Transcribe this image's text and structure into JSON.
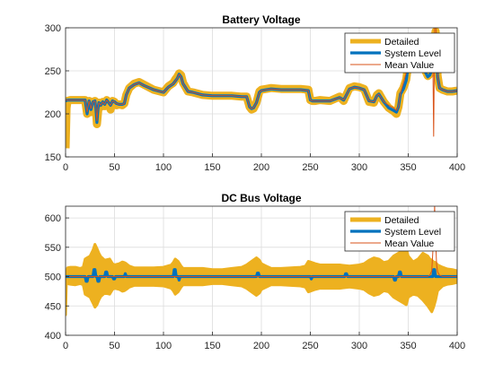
{
  "chart_data": [
    {
      "type": "line",
      "title": "Battery Voltage",
      "xlim": [
        0,
        400
      ],
      "ylim": [
        150,
        300
      ],
      "x_ticks": [
        "0",
        "50",
        "100",
        "150",
        "200",
        "250",
        "300",
        "350",
        "400"
      ],
      "y_ticks": [
        "150",
        "200",
        "250",
        "300"
      ],
      "y_tick_values": [
        150,
        200,
        250,
        300
      ],
      "grid": true,
      "legend_placement": "top-right",
      "series": [
        {
          "name": "Detailed",
          "color": "#EDB120",
          "style": "thick band",
          "band_halfwidth": 6,
          "x": [
            0,
            1,
            2,
            5,
            10,
            15,
            20,
            22,
            24,
            26,
            28,
            30,
            31,
            32,
            33,
            34,
            36,
            38,
            40,
            42,
            44,
            46,
            48,
            50,
            52,
            55,
            58,
            60,
            62,
            65,
            70,
            75,
            80,
            90,
            100,
            105,
            110,
            112,
            114,
            116,
            118,
            120,
            125,
            130,
            140,
            150,
            160,
            170,
            180,
            185,
            188,
            190,
            192,
            195,
            198,
            200,
            205,
            210,
            220,
            230,
            240,
            248,
            250,
            252,
            255,
            260,
            270,
            280,
            284,
            286,
            290,
            295,
            300,
            305,
            310,
            315,
            318,
            320,
            325,
            330,
            335,
            338,
            340,
            342,
            345,
            348,
            350,
            355,
            360,
            365,
            370,
            372,
            374,
            375,
            376,
            377,
            378,
            380,
            382,
            385,
            390,
            395,
            400
          ],
          "y": [
            160,
            207,
            215,
            216,
            216,
            216,
            216,
            200,
            215,
            202,
            214,
            215,
            205,
            188,
            200,
            213,
            208,
            214,
            209,
            216,
            212,
            205,
            215,
            214,
            210,
            211,
            210,
            212,
            222,
            230,
            235,
            237,
            234,
            228,
            225,
            232,
            236,
            240,
            243,
            247,
            245,
            236,
            226,
            225,
            222,
            221,
            221,
            221,
            220,
            220,
            208,
            205,
            206,
            213,
            226,
            228,
            229,
            230,
            229,
            229,
            229,
            228,
            216,
            215,
            215,
            216,
            215,
            220,
            215,
            220,
            230,
            232,
            231,
            229,
            214,
            213,
            222,
            224,
            214,
            207,
            203,
            200,
            208,
            224,
            230,
            240,
            258,
            260,
            262,
            256,
            244,
            246,
            252,
            258,
            262,
            290,
            296,
            244,
            230,
            228,
            226,
            226,
            227
          ]
        },
        {
          "name": "System Level",
          "color": "#0072BD",
          "style": "medium line",
          "x": [
            0,
            2,
            5,
            10,
            15,
            20,
            22,
            24,
            26,
            28,
            30,
            31,
            32,
            33,
            34,
            36,
            38,
            40,
            42,
            44,
            46,
            48,
            50,
            52,
            55,
            58,
            60,
            62,
            65,
            70,
            75,
            80,
            90,
            100,
            105,
            110,
            112,
            114,
            116,
            118,
            120,
            125,
            130,
            140,
            150,
            160,
            170,
            180,
            185,
            188,
            190,
            192,
            195,
            198,
            200,
            205,
            210,
            220,
            230,
            240,
            248,
            250,
            252,
            255,
            260,
            270,
            280,
            284,
            286,
            290,
            295,
            300,
            305,
            310,
            315,
            318,
            320,
            325,
            330,
            335,
            338,
            340,
            342,
            345,
            348,
            350,
            355,
            360,
            365,
            370,
            372,
            374,
            375,
            376,
            377,
            378,
            380,
            382,
            385,
            390,
            395,
            400
          ],
          "y": [
            215,
            216,
            216,
            216,
            216,
            216,
            200,
            215,
            205,
            214,
            215,
            206,
            190,
            205,
            213,
            210,
            214,
            211,
            216,
            213,
            210,
            215,
            214,
            212,
            211,
            211,
            212,
            222,
            230,
            234,
            236,
            233,
            228,
            225,
            231,
            235,
            238,
            241,
            246,
            243,
            235,
            226,
            225,
            222,
            221,
            221,
            221,
            220,
            220,
            208,
            206,
            207,
            213,
            225,
            227,
            228,
            229,
            228,
            228,
            228,
            227,
            216,
            215,
            215,
            215,
            215,
            219,
            216,
            220,
            229,
            231,
            230,
            228,
            215,
            214,
            221,
            223,
            214,
            207,
            204,
            202,
            208,
            223,
            229,
            239,
            256,
            258,
            260,
            254,
            243,
            245,
            251,
            257,
            260,
            282,
            290,
            243,
            230,
            228,
            226,
            226,
            227
          ]
        },
        {
          "name": "Mean Value",
          "color": "#D95319",
          "style": "thin line",
          "x": [
            0,
            2,
            5,
            10,
            15,
            20,
            22,
            24,
            26,
            28,
            30,
            31,
            32,
            33,
            34,
            36,
            38,
            40,
            42,
            44,
            46,
            48,
            50,
            52,
            55,
            58,
            60,
            62,
            65,
            70,
            75,
            80,
            90,
            100,
            105,
            110,
            112,
            114,
            116,
            118,
            120,
            125,
            130,
            140,
            150,
            160,
            170,
            180,
            185,
            188,
            190,
            192,
            195,
            198,
            200,
            205,
            210,
            220,
            230,
            240,
            248,
            250,
            252,
            255,
            260,
            270,
            280,
            284,
            286,
            290,
            295,
            300,
            305,
            310,
            315,
            318,
            320,
            325,
            330,
            335,
            338,
            340,
            342,
            345,
            348,
            350,
            355,
            360,
            365,
            370,
            372,
            374,
            375,
            376,
            377,
            378,
            380,
            382,
            385,
            390,
            395,
            400
          ],
          "y": [
            216,
            216,
            216,
            216,
            216,
            216,
            202,
            215,
            206,
            214,
            215,
            207,
            192,
            206,
            213,
            210,
            214,
            211,
            216,
            213,
            210,
            215,
            214,
            212,
            211,
            211,
            212,
            222,
            230,
            234,
            236,
            233,
            228,
            225,
            231,
            235,
            238,
            241,
            246,
            243,
            235,
            226,
            225,
            222,
            221,
            221,
            221,
            220,
            220,
            208,
            206,
            207,
            213,
            225,
            227,
            228,
            229,
            228,
            228,
            228,
            227,
            216,
            215,
            215,
            215,
            215,
            219,
            216,
            220,
            229,
            231,
            230,
            228,
            215,
            214,
            221,
            223,
            214,
            210,
            207,
            204,
            208,
            224,
            236,
            248,
            258,
            262,
            266,
            262,
            260,
            262,
            268,
            276,
            174,
            300,
            310,
            244,
            230,
            228,
            226,
            226,
            227
          ]
        }
      ]
    },
    {
      "type": "line",
      "title": "DC Bus Voltage",
      "xlim": [
        0,
        400
      ],
      "ylim": [
        400,
        620
      ],
      "x_ticks": [
        "0",
        "50",
        "100",
        "150",
        "200",
        "250",
        "300",
        "350",
        "400"
      ],
      "y_ticks": [
        "400",
        "450",
        "500",
        "550",
        "600"
      ],
      "y_tick_values": [
        400,
        450,
        500,
        550,
        600
      ],
      "grid": true,
      "legend_placement": "top-right",
      "series": [
        {
          "name": "Detailed",
          "color": "#EDB120",
          "style": "envelope",
          "x": [
            0,
            1,
            2,
            5,
            10,
            15,
            18,
            20,
            22,
            25,
            28,
            30,
            32,
            34,
            36,
            40,
            45,
            48,
            50,
            55,
            58,
            60,
            62,
            65,
            70,
            80,
            90,
            100,
            108,
            110,
            112,
            115,
            118,
            120,
            130,
            140,
            150,
            160,
            170,
            180,
            185,
            190,
            195,
            198,
            200,
            205,
            210,
            220,
            230,
            240,
            245,
            248,
            250,
            255,
            260,
            270,
            280,
            290,
            300,
            305,
            310,
            315,
            320,
            325,
            330,
            335,
            340,
            345,
            348,
            350,
            355,
            360,
            365,
            370,
            372,
            374,
            376,
            378,
            380,
            385,
            390,
            395,
            400
          ],
          "upper": [
            504,
            506,
            515,
            516,
            516,
            514,
            516,
            530,
            532,
            535,
            545,
            555,
            548,
            540,
            534,
            528,
            530,
            522,
            520,
            522,
            525,
            524,
            522,
            518,
            515,
            515,
            515,
            516,
            520,
            524,
            530,
            526,
            518,
            514,
            514,
            514,
            512,
            512,
            514,
            516,
            520,
            526,
            532,
            528,
            522,
            518,
            514,
            514,
            515,
            516,
            518,
            526,
            525,
            522,
            520,
            520,
            520,
            518,
            520,
            522,
            528,
            532,
            530,
            524,
            526,
            535,
            540,
            545,
            548,
            535,
            525,
            530,
            540,
            535,
            530,
            528,
            525,
            524,
            520,
            516,
            513,
            512,
            510
          ],
          "lower": [
            435,
            498,
            488,
            487,
            486,
            488,
            486,
            470,
            468,
            465,
            455,
            448,
            452,
            460,
            466,
            472,
            470,
            478,
            480,
            478,
            475,
            476,
            478,
            482,
            485,
            485,
            485,
            484,
            480,
            476,
            470,
            474,
            482,
            486,
            486,
            486,
            488,
            488,
            486,
            484,
            480,
            474,
            468,
            472,
            478,
            482,
            486,
            486,
            485,
            484,
            482,
            474,
            475,
            478,
            480,
            480,
            480,
            482,
            480,
            478,
            472,
            468,
            470,
            476,
            474,
            465,
            460,
            455,
            452,
            465,
            470,
            468,
            460,
            450,
            445,
            440,
            448,
            460,
            476,
            484,
            487,
            488,
            490
          ]
        },
        {
          "name": "System Level",
          "color": "#0072BD",
          "style": "medium line",
          "x": [
            0,
            20,
            21,
            22,
            23,
            28,
            29,
            30,
            31,
            32,
            33,
            34,
            35,
            40,
            41,
            42,
            43,
            48,
            49,
            50,
            51,
            60,
            61,
            62,
            110,
            111,
            112,
            113,
            115,
            116,
            117,
            195,
            196,
            197,
            198,
            250,
            251,
            252,
            285,
            286,
            287,
            288,
            335,
            336,
            337,
            338,
            340,
            341,
            342,
            343,
            375,
            376,
            377,
            378,
            380,
            381,
            400
          ],
          "y": [
            500,
            500,
            492,
            492,
            500,
            500,
            512,
            512,
            500,
            500,
            492,
            492,
            500,
            500,
            508,
            508,
            500,
            500,
            496,
            496,
            500,
            500,
            505,
            500,
            500,
            512,
            512,
            500,
            500,
            494,
            500,
            500,
            506,
            506,
            500,
            500,
            496,
            500,
            500,
            505,
            505,
            500,
            500,
            494,
            494,
            500,
            500,
            508,
            508,
            500,
            500,
            512,
            512,
            500,
            500,
            500,
            500
          ]
        },
        {
          "name": "Mean Value",
          "color": "#D95319",
          "style": "thin line",
          "x": [
            0,
            2,
            370,
            372,
            374,
            375,
            376,
            377,
            378,
            379,
            380,
            382,
            385,
            400
          ],
          "y": [
            500,
            500,
            500,
            502,
            510,
            540,
            575,
            620,
            560,
            520,
            508,
            502,
            500,
            500
          ]
        }
      ]
    }
  ]
}
